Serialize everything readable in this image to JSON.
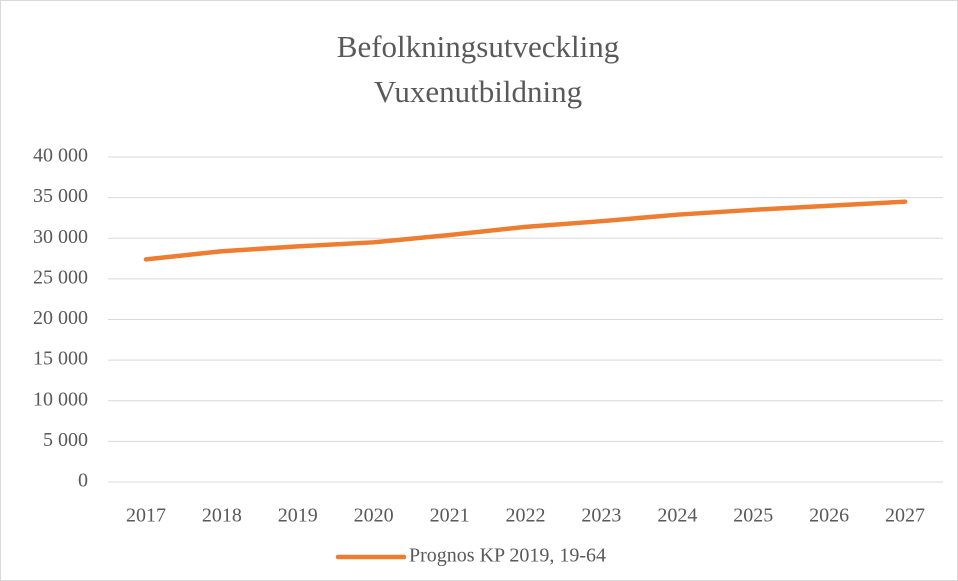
{
  "chart_data": {
    "type": "line",
    "title": [
      "Befolkningsutveckling",
      "Vuxenutbildning"
    ],
    "categories": [
      "2017",
      "2018",
      "2019",
      "2020",
      "2021",
      "2022",
      "2023",
      "2024",
      "2025",
      "2026",
      "2027"
    ],
    "series": [
      {
        "name": "Prognos KP 2019, 19-64",
        "color": "#ed7d31",
        "values": [
          27400,
          28400,
          29000,
          29500,
          30400,
          31400,
          32100,
          32900,
          33500,
          34000,
          34500
        ]
      }
    ],
    "ylim": [
      0,
      40000
    ],
    "yticks": [
      0,
      {
        "value": 5000,
        "label": "5 000"
      },
      {
        "value": 10000,
        "label": "10 000"
      },
      {
        "value": 15000,
        "label": "15 000"
      },
      {
        "value": 20000,
        "label": "20 000"
      },
      {
        "value": 25000,
        "label": "25 000"
      },
      {
        "value": 30000,
        "label": "30 000"
      },
      {
        "value": 35000,
        "label": "35 000"
      },
      {
        "value": 40000,
        "label": "40 000"
      }
    ],
    "grid": true,
    "legend": "bottom"
  }
}
